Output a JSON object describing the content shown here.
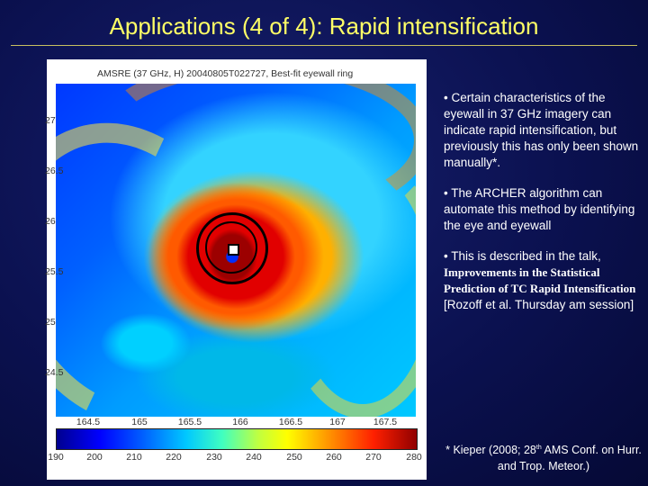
{
  "slide": {
    "title": "Applications (4 of 4): Rapid intensification"
  },
  "figure": {
    "title": "AMSRE (37 GHz, H) 20040805T022727, Best-fit eyewall ring",
    "y_ticks": [
      "27",
      "26.5",
      "26",
      "25.5",
      "25",
      "24.5"
    ],
    "x_ticks": [
      "164.5",
      "165",
      "165.5",
      "166",
      "166.5",
      "167",
      "167.5"
    ],
    "colorbar_ticks": [
      "190",
      "200",
      "210",
      "220",
      "230",
      "240",
      "250",
      "260",
      "270",
      "280"
    ]
  },
  "bullets": {
    "b1": "• Certain characteristics of the eyewall in 37 GHz imagery can indicate rapid intensification, but previously this has only been shown manually*.",
    "b2": "• The ARCHER algorithm can automate this method by identifying the eye and eyewall",
    "b3_pre": "• This is described in the talk,",
    "b3_bold": "Improvements in the Statistical Prediction of TC Rapid Intensification",
    "b3_post": "[Rozoff et al. Thursday am session]"
  },
  "footnote": {
    "pre": "* Kieper (2008; 28",
    "sup": "th",
    "post": "AMS Conf. on Hurr. and Trop. Meteor.)"
  }
}
